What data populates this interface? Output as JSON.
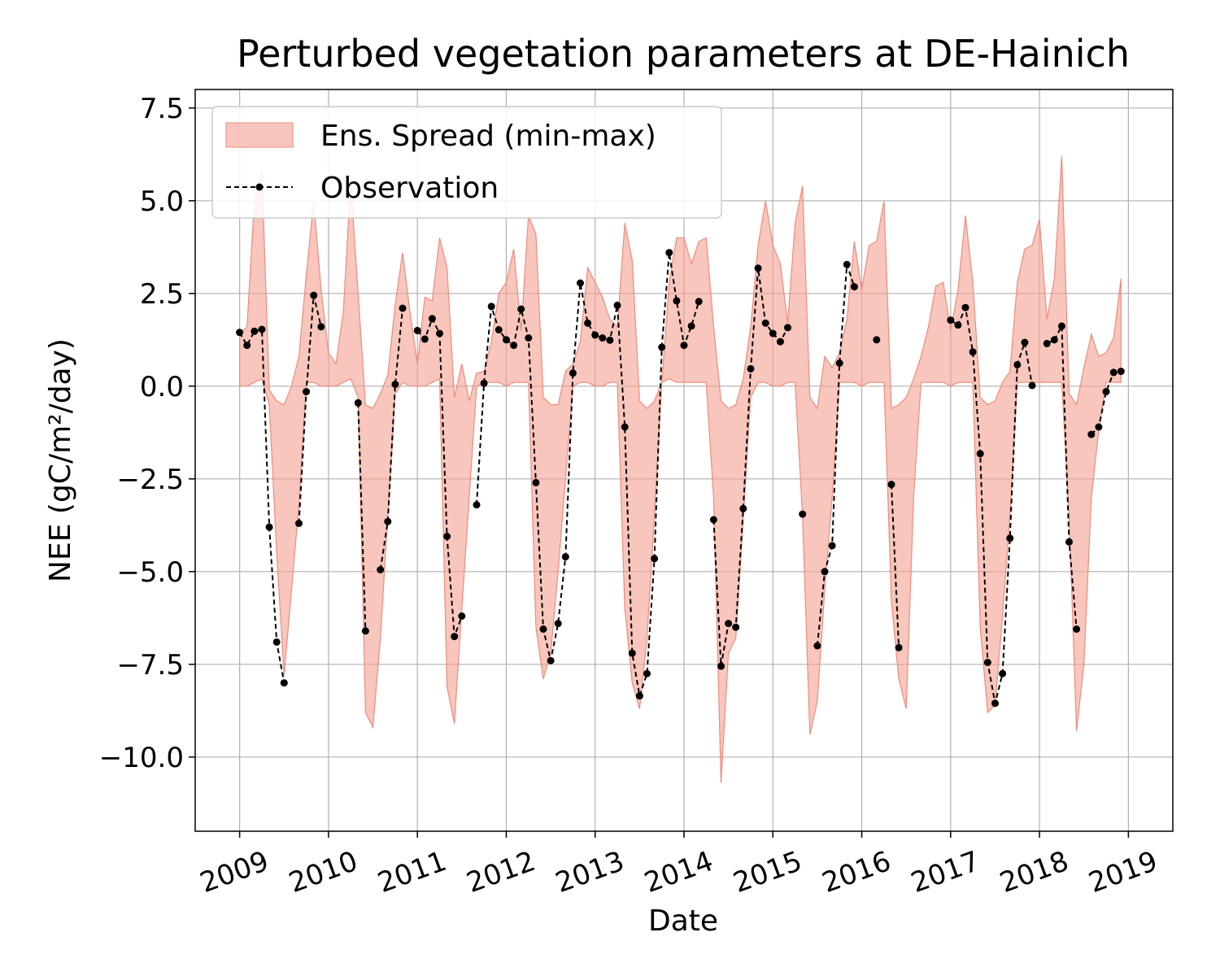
{
  "chart_data": {
    "type": "line",
    "title": "Perturbed vegetation parameters at DE-Hainich",
    "xlabel": "Date",
    "ylabel": "NEE  (gC/m²/day)",
    "xlim": [
      "2008-07",
      "2019-07"
    ],
    "ylim": [
      -12,
      8
    ],
    "x_ticks": [
      "2009",
      "2010",
      "2011",
      "2012",
      "2013",
      "2014",
      "2015",
      "2016",
      "2017",
      "2018",
      "2019"
    ],
    "y_ticks": [
      7.5,
      5.0,
      2.5,
      0.0,
      -2.5,
      -5.0,
      -7.5,
      -10.0
    ],
    "y_tick_labels": [
      "7.5",
      "5.0",
      "2.5",
      "0.0",
      "−2.5",
      "−5.0",
      "−7.5",
      "−10.0"
    ],
    "grid": true,
    "legend_position": "top-left",
    "colors": {
      "spread_fill": "#f4a090",
      "spread_edge": "#ee8b7e",
      "observation": "#000000"
    },
    "spread": {
      "name": "Ens. Spread (min-max)",
      "x": [
        "2009-01",
        "2009-02",
        "2009-03",
        "2009-04",
        "2009-05",
        "2009-06",
        "2009-07",
        "2009-08",
        "2009-09",
        "2009-10",
        "2009-11",
        "2009-12",
        "2010-01",
        "2010-02",
        "2010-03",
        "2010-04",
        "2010-05",
        "2010-06",
        "2010-07",
        "2010-08",
        "2010-09",
        "2010-10",
        "2010-11",
        "2010-12",
        "2011-01",
        "2011-02",
        "2011-03",
        "2011-04",
        "2011-05",
        "2011-06",
        "2011-07",
        "2011-08",
        "2011-09",
        "2011-10",
        "2011-11",
        "2011-12",
        "2012-01",
        "2012-02",
        "2012-03",
        "2012-04",
        "2012-05",
        "2012-06",
        "2012-07",
        "2012-08",
        "2012-09",
        "2012-10",
        "2012-11",
        "2012-12",
        "2013-01",
        "2013-02",
        "2013-03",
        "2013-04",
        "2013-05",
        "2013-06",
        "2013-07",
        "2013-08",
        "2013-09",
        "2013-10",
        "2013-11",
        "2013-12",
        "2014-01",
        "2014-02",
        "2014-03",
        "2014-04",
        "2014-05",
        "2014-06",
        "2014-07",
        "2014-08",
        "2014-09",
        "2014-10",
        "2014-11",
        "2014-12",
        "2015-01",
        "2015-02",
        "2015-03",
        "2015-04",
        "2015-05",
        "2015-06",
        "2015-07",
        "2015-08",
        "2015-09",
        "2015-10",
        "2015-11",
        "2015-12",
        "2016-01",
        "2016-02",
        "2016-03",
        "2016-04",
        "2016-05",
        "2016-06",
        "2016-07",
        "2016-08",
        "2016-09",
        "2016-10",
        "2016-11",
        "2016-12",
        "2017-01",
        "2017-02",
        "2017-03",
        "2017-04",
        "2017-05",
        "2017-06",
        "2017-07",
        "2017-08",
        "2017-09",
        "2017-10",
        "2017-11",
        "2017-12",
        "2018-01",
        "2018-02",
        "2018-03",
        "2018-04",
        "2018-05",
        "2018-06",
        "2018-07",
        "2018-08",
        "2018-09",
        "2018-10",
        "2018-11",
        "2018-12"
      ],
      "upper": [
        1.4,
        1.6,
        5.0,
        5.8,
        -0.1,
        -0.4,
        -0.5,
        0.0,
        0.8,
        3.0,
        5.0,
        2.6,
        0.9,
        0.6,
        2.0,
        5.5,
        2.5,
        -0.5,
        -0.6,
        -0.2,
        0.3,
        2.2,
        3.6,
        2.0,
        0.6,
        2.4,
        2.3,
        4.0,
        3.2,
        -0.3,
        0.6,
        -0.4,
        0.35,
        0.4,
        1.2,
        2.5,
        2.8,
        3.7,
        1.5,
        4.6,
        4.1,
        -0.3,
        -0.5,
        -0.5,
        0.4,
        0.6,
        1.2,
        3.2,
        2.8,
        2.4,
        1.8,
        1.6,
        4.4,
        3.4,
        -0.4,
        -0.6,
        -0.4,
        0.1,
        2.8,
        4.0,
        4.0,
        3.3,
        3.9,
        4.0,
        1.6,
        -0.4,
        -0.6,
        -0.5,
        0.2,
        1.6,
        3.8,
        5.0,
        3.8,
        3.3,
        1.7,
        4.4,
        5.4,
        -0.3,
        -0.6,
        0.8,
        0.5,
        0.9,
        1.8,
        3.9,
        2.6,
        3.8,
        3.9,
        5.0,
        -0.6,
        -0.5,
        -0.3,
        0.2,
        0.8,
        1.6,
        2.7,
        2.8,
        1.5,
        2.6,
        4.6,
        2.8,
        -0.3,
        -0.5,
        -0.4,
        0.1,
        0.4,
        2.8,
        3.7,
        3.8,
        4.5,
        1.8,
        2.9,
        6.2,
        -0.2,
        -0.5,
        0.5,
        1.4,
        0.8,
        0.9,
        1.3,
        2.9
      ],
      "lower": [
        0.0,
        0.0,
        0.1,
        0.2,
        -0.5,
        -4.5,
        -7.8,
        -5.5,
        -3.2,
        0.1,
        0.1,
        0.0,
        0.0,
        0.0,
        0.1,
        0.2,
        -0.3,
        -8.8,
        -9.2,
        -6.8,
        -3.5,
        -0.2,
        0.1,
        0.0,
        0.0,
        0.0,
        0.1,
        0.2,
        -8.1,
        -9.1,
        -6.0,
        -3.0,
        0.0,
        0.1,
        0.1,
        0.1,
        0.0,
        0.1,
        0.1,
        0.1,
        -6.5,
        -7.9,
        -7.2,
        -5.0,
        -2.5,
        0.0,
        0.1,
        0.1,
        0.0,
        0.0,
        0.1,
        0.1,
        -6.0,
        -8.0,
        -8.7,
        -6.8,
        -3.5,
        0.1,
        0.2,
        0.1,
        0.1,
        0.1,
        0.1,
        0.1,
        -3.0,
        -10.7,
        -7.2,
        -6.8,
        -3.6,
        -0.3,
        0.1,
        0.1,
        0.0,
        0.0,
        0.1,
        0.1,
        -3.5,
        -9.4,
        -8.5,
        -5.5,
        -3.0,
        0.1,
        0.1,
        0.1,
        0.0,
        0.1,
        0.1,
        0.1,
        -5.8,
        -7.9,
        -8.7,
        -3.0,
        0.1,
        0.1,
        0.1,
        0.1,
        0.0,
        0.1,
        0.1,
        0.1,
        -6.5,
        -8.8,
        -8.6,
        -6.2,
        -3.5,
        0.1,
        0.1,
        0.1,
        0.1,
        0.1,
        0.1,
        0.1,
        -3.5,
        -9.3,
        -7.5,
        -3.0,
        -1.2,
        0.1,
        0.1,
        0.1
      ]
    },
    "observation": {
      "name": "Observation",
      "segments": [
        {
          "x": [
            "2009-01",
            "2009-02",
            "2009-03",
            "2009-04",
            "2009-05",
            "2009-06",
            "2009-07"
          ],
          "y": [
            1.45,
            1.1,
            1.48,
            1.53,
            -3.8,
            -6.9,
            -8.0
          ]
        },
        {
          "x": [
            "2009-09",
            "2009-10",
            "2009-11",
            "2009-12"
          ],
          "y": [
            -3.7,
            -0.15,
            2.45,
            1.6
          ]
        },
        {
          "x": [
            "2010-05",
            "2010-06"
          ],
          "y": [
            -0.45,
            -6.6
          ]
        },
        {
          "x": [
            "2010-08",
            "2010-09",
            "2010-10",
            "2010-11"
          ],
          "y": [
            -4.95,
            -3.65,
            0.05,
            2.1
          ]
        },
        {
          "x": [
            "2011-01",
            "2011-02",
            "2011-03",
            "2011-04",
            "2011-05",
            "2011-06",
            "2011-07"
          ],
          "y": [
            1.5,
            1.27,
            1.82,
            1.42,
            -4.05,
            -6.75,
            -6.2
          ]
        },
        {
          "x": [
            "2011-09",
            "2011-10",
            "2011-11",
            "2011-12",
            "2012-01",
            "2012-02",
            "2012-03",
            "2012-04",
            "2012-05",
            "2012-06",
            "2012-07",
            "2012-08",
            "2012-09",
            "2012-10",
            "2012-11",
            "2012-12",
            "2013-01",
            "2013-02",
            "2013-03",
            "2013-04",
            "2013-05",
            "2013-06",
            "2013-07",
            "2013-08",
            "2013-09",
            "2013-10",
            "2013-11",
            "2013-12",
            "2014-01",
            "2014-02",
            "2014-03"
          ],
          "y": [
            -3.2,
            0.08,
            2.15,
            1.52,
            1.25,
            1.1,
            2.08,
            1.3,
            -2.6,
            -6.55,
            -7.4,
            -6.4,
            -4.6,
            0.35,
            2.78,
            1.7,
            1.38,
            1.3,
            1.24,
            2.18,
            -1.1,
            -7.2,
            -8.35,
            -7.75,
            -4.65,
            1.05,
            3.6,
            2.3,
            1.1,
            1.62,
            2.28
          ]
        },
        {
          "x": [
            "2014-05",
            "2014-06",
            "2014-07",
            "2014-08",
            "2014-09",
            "2014-10",
            "2014-11",
            "2014-12",
            "2015-01",
            "2015-02",
            "2015-03"
          ],
          "y": [
            -3.6,
            -7.55,
            -6.4,
            -6.5,
            -3.3,
            0.47,
            3.18,
            1.7,
            1.42,
            1.2,
            1.58
          ]
        },
        {
          "x": [
            "2015-05"
          ],
          "y": [
            -3.45
          ]
        },
        {
          "x": [
            "2015-07",
            "2015-08",
            "2015-09",
            "2015-10",
            "2015-11",
            "2015-12"
          ],
          "y": [
            -7.0,
            -5.0,
            -4.3,
            0.62,
            3.28,
            2.68
          ]
        },
        {
          "x": [
            "2016-03"
          ],
          "y": [
            1.25
          ]
        },
        {
          "x": [
            "2016-05",
            "2016-06"
          ],
          "y": [
            -2.65,
            -7.05
          ]
        },
        {
          "x": [
            "2017-01",
            "2017-02",
            "2017-03",
            "2017-04",
            "2017-05",
            "2017-06",
            "2017-07",
            "2017-08",
            "2017-09",
            "2017-10",
            "2017-11",
            "2017-12"
          ],
          "y": [
            1.78,
            1.65,
            2.12,
            0.92,
            -1.82,
            -7.45,
            -8.55,
            -7.75,
            -4.1,
            0.58,
            1.18,
            0.02
          ]
        },
        {
          "x": [
            "2018-02",
            "2018-03",
            "2018-04",
            "2018-05",
            "2018-06"
          ],
          "y": [
            1.15,
            1.25,
            1.62,
            -4.2,
            -6.55
          ]
        },
        {
          "x": [
            "2018-08",
            "2018-09",
            "2018-10",
            "2018-11",
            "2018-12"
          ],
          "y": [
            -1.3,
            -1.1,
            -0.15,
            0.37,
            0.4
          ]
        }
      ]
    }
  }
}
